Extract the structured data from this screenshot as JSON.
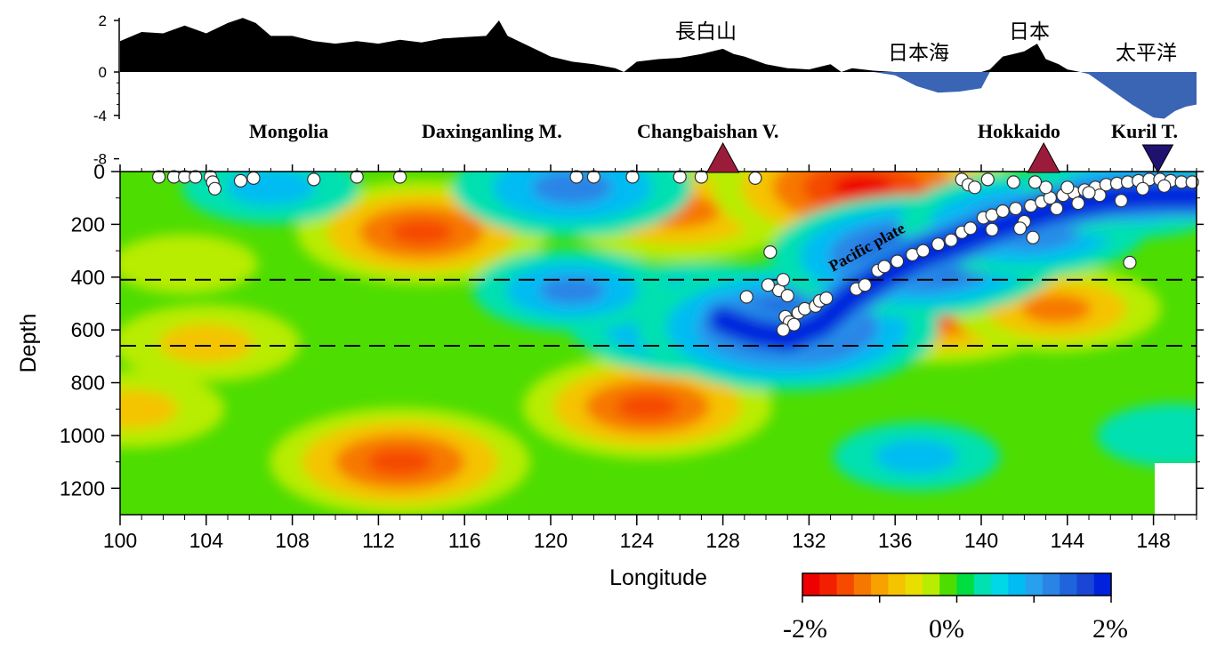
{
  "chart_data": {
    "type": "heatmap",
    "title": "",
    "xlabel": "Longitude",
    "ylabel": "Depth",
    "xlim": [
      100,
      150
    ],
    "ylim": [
      1300,
      0
    ],
    "x_ticks": [
      "100",
      "104",
      "108",
      "112",
      "116",
      "120",
      "124",
      "128",
      "132",
      "136",
      "140",
      "144",
      "148"
    ],
    "y_ticks": [
      "0",
      "200",
      "400",
      "600",
      "800",
      "1000",
      "1200"
    ],
    "discontinuities_depth": [
      410,
      660
    ],
    "colorbar": {
      "labels": [
        "-2%",
        "0%",
        "2%"
      ],
      "range": [
        -2,
        2
      ],
      "colors": [
        "#ee0000",
        "#f32000",
        "#f54a00",
        "#f77800",
        "#f7a200",
        "#f4c400",
        "#e8df00",
        "#b8ec00",
        "#4ddd00",
        "#00dd40",
        "#00e0b0",
        "#00d8e8",
        "#00bcf2",
        "#28a0ee",
        "#2a84e6",
        "#1f64dc",
        "#1a46d6",
        "#0022dd"
      ]
    },
    "anomaly_field": [
      {
        "lon": 104,
        "depth": 650,
        "value": -0.9
      },
      {
        "lon": 114,
        "depth": 230,
        "value": -1.5
      },
      {
        "lon": 103,
        "depth": 350,
        "value": -0.5
      },
      {
        "lon": 113,
        "depth": 1100,
        "value": -1.6
      },
      {
        "lon": 124.5,
        "depth": 890,
        "value": -1.5
      },
      {
        "lon": 126,
        "depth": 150,
        "value": -1.4
      },
      {
        "lon": 134.5,
        "depth": 60,
        "value": -2.0
      },
      {
        "lon": 138,
        "depth": 520,
        "value": -1.6
      },
      {
        "lon": 143.5,
        "depth": 520,
        "value": -1.1
      },
      {
        "lon": 100.5,
        "depth": 900,
        "value": -0.9
      },
      {
        "lon": 121,
        "depth": 60,
        "value": 1.4
      },
      {
        "lon": 107,
        "depth": 60,
        "value": 0.8
      },
      {
        "lon": 127,
        "depth": 560,
        "value": 1.7
      },
      {
        "lon": 131,
        "depth": 590,
        "value": 2.0
      },
      {
        "lon": 137,
        "depth": 320,
        "value": 1.9
      },
      {
        "lon": 142,
        "depth": 200,
        "value": 1.5
      },
      {
        "lon": 147,
        "depth": 80,
        "value": 1.2
      },
      {
        "lon": 121,
        "depth": 450,
        "value": 1.0
      },
      {
        "lon": 137,
        "depth": 1080,
        "value": 0.7
      },
      {
        "lon": 149,
        "depth": 1000,
        "value": 0.6
      }
    ],
    "earthquakes": [
      [
        101.8,
        20
      ],
      [
        102.5,
        20
      ],
      [
        103,
        20
      ],
      [
        103.5,
        20
      ],
      [
        104.2,
        20
      ],
      [
        104.3,
        40
      ],
      [
        104.4,
        65
      ],
      [
        105.6,
        35
      ],
      [
        106.2,
        25
      ],
      [
        109,
        30
      ],
      [
        111,
        10
      ],
      [
        113,
        20
      ],
      [
        121.2,
        20
      ],
      [
        122,
        20
      ],
      [
        123.8,
        20
      ],
      [
        126,
        20
      ],
      [
        127,
        20
      ],
      [
        129.5,
        25
      ],
      [
        130.2,
        305
      ],
      [
        130.6,
        450
      ],
      [
        130.8,
        410
      ],
      [
        131,
        470
      ],
      [
        129.1,
        475
      ],
      [
        130.1,
        430
      ],
      [
        130.9,
        550
      ],
      [
        131.1,
        570
      ],
      [
        131.3,
        580
      ],
      [
        130.8,
        600
      ],
      [
        131.5,
        535
      ],
      [
        131.8,
        520
      ],
      [
        132.3,
        510
      ],
      [
        132.5,
        490
      ],
      [
        132.8,
        480
      ],
      [
        134.2,
        445
      ],
      [
        134.6,
        430
      ],
      [
        135.2,
        375
      ],
      [
        135.5,
        360
      ],
      [
        136.1,
        340
      ],
      [
        136.8,
        315
      ],
      [
        137.3,
        300
      ],
      [
        138,
        275
      ],
      [
        138.6,
        260
      ],
      [
        139.1,
        230
      ],
      [
        139.5,
        215
      ],
      [
        140.1,
        175
      ],
      [
        140.5,
        165
      ],
      [
        141,
        150
      ],
      [
        141.6,
        140
      ],
      [
        142.3,
        130
      ],
      [
        142.8,
        115
      ],
      [
        143.2,
        100
      ],
      [
        143.8,
        90
      ],
      [
        144.3,
        80
      ],
      [
        144.8,
        70
      ],
      [
        145.3,
        60
      ],
      [
        145.8,
        50
      ],
      [
        146.3,
        45
      ],
      [
        146.8,
        40
      ],
      [
        147.3,
        35
      ],
      [
        147.8,
        30
      ],
      [
        148.3,
        30
      ],
      [
        148.8,
        35
      ],
      [
        149.3,
        40
      ],
      [
        149.8,
        40
      ],
      [
        139.1,
        30
      ],
      [
        139.4,
        50
      ],
      [
        139.7,
        60
      ],
      [
        140.3,
        30
      ],
      [
        141.5,
        40
      ],
      [
        142.4,
        250
      ],
      [
        142,
        190
      ],
      [
        143.5,
        140
      ],
      [
        144.5,
        120
      ],
      [
        145.5,
        90
      ],
      [
        146.5,
        110
      ],
      [
        147.5,
        65
      ],
      [
        148.5,
        55
      ],
      [
        146.9,
        345
      ],
      [
        145,
        80
      ],
      [
        144,
        60
      ],
      [
        143,
        60
      ],
      [
        140.5,
        220
      ],
      [
        141.8,
        215
      ],
      [
        142.5,
        40
      ]
    ],
    "volcanoes": [
      {
        "lon": 128,
        "type": "volcano"
      },
      {
        "lon": 142.9,
        "type": "volcano"
      },
      {
        "lon": 148.2,
        "type": "trench"
      }
    ]
  },
  "topography": {
    "y_ticks": [
      "2",
      "0",
      "-4",
      "-8"
    ],
    "land_color": "#000000",
    "sea_color": "#3a64b4",
    "profile": [
      [
        100,
        1.2
      ],
      [
        101,
        1.55
      ],
      [
        102,
        1.5
      ],
      [
        103,
        1.8
      ],
      [
        104,
        1.5
      ],
      [
        105,
        1.9
      ],
      [
        105.7,
        2.1
      ],
      [
        106.3,
        1.9
      ],
      [
        107,
        1.4
      ],
      [
        108,
        1.4
      ],
      [
        109,
        1.2
      ],
      [
        110,
        1.1
      ],
      [
        111,
        1.2
      ],
      [
        112,
        1.1
      ],
      [
        113,
        1.25
      ],
      [
        114,
        1.15
      ],
      [
        115,
        1.3
      ],
      [
        116,
        1.35
      ],
      [
        117,
        1.4
      ],
      [
        117.6,
        2.0
      ],
      [
        118,
        1.4
      ],
      [
        119,
        1.0
      ],
      [
        120,
        0.6
      ],
      [
        121,
        0.4
      ],
      [
        122,
        0.3
      ],
      [
        123,
        0.15
      ],
      [
        123.4,
        0.0
      ],
      [
        124,
        0.4
      ],
      [
        125,
        0.5
      ],
      [
        126,
        0.55
      ],
      [
        127,
        0.7
      ],
      [
        128,
        0.9
      ],
      [
        128.5,
        0.7
      ],
      [
        129,
        0.6
      ],
      [
        130,
        0.3
      ],
      [
        131,
        0.15
      ],
      [
        132,
        0.1
      ],
      [
        133,
        0.3
      ],
      [
        133.5,
        0.0
      ],
      [
        134,
        0.15
      ],
      [
        135,
        0.05
      ],
      [
        136,
        -0.3
      ],
      [
        137,
        -1.3
      ],
      [
        138,
        -1.9
      ],
      [
        139,
        -1.8
      ],
      [
        140,
        -1.5
      ],
      [
        140.4,
        0.1
      ],
      [
        141,
        0.6
      ],
      [
        142,
        0.8
      ],
      [
        142.6,
        1.1
      ],
      [
        143,
        0.5
      ],
      [
        143.6,
        0.3
      ],
      [
        144,
        0.1
      ],
      [
        144.6,
        0.0
      ],
      [
        145,
        -0.2
      ],
      [
        146,
        -1.6
      ],
      [
        147,
        -3.0
      ],
      [
        148,
        -4.2
      ],
      [
        148.5,
        -4.3
      ],
      [
        149,
        -3.6
      ],
      [
        149.5,
        -3.2
      ],
      [
        150,
        -3.0
      ]
    ]
  },
  "labels": {
    "regions": [
      "Mongolia",
      "Daxinganling M.",
      "Changbaishan V.",
      "Hokkaido",
      "Kuril T."
    ],
    "jp": [
      "長白山",
      "日本海",
      "日本",
      "太平洋"
    ],
    "plate": "Pacific plate"
  }
}
